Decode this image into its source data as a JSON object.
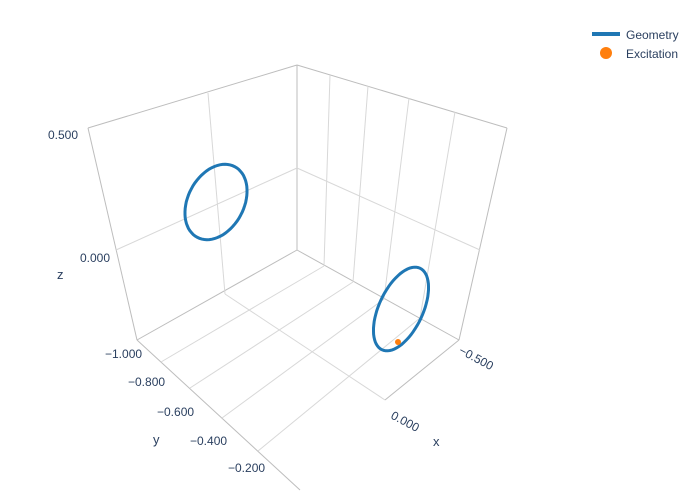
{
  "chart_data": {
    "type": "scatter3d",
    "title": "",
    "axes": {
      "x": {
        "label": "x",
        "ticks": [
          "−0.500",
          "0.000"
        ]
      },
      "y": {
        "label": "y",
        "ticks": [
          "−1.000",
          "−0.800",
          "−0.600",
          "−0.400",
          "−0.200"
        ]
      },
      "z": {
        "label": "z",
        "ticks": [
          "0.500",
          "0.000"
        ]
      }
    },
    "legend": {
      "placement": "top-right",
      "entries": [
        {
          "name": "Geometry",
          "symbol": "line",
          "color": "#1f77b4"
        },
        {
          "name": "Excitation",
          "symbol": "marker",
          "color": "#ff7f0e"
        }
      ]
    },
    "series": [
      {
        "name": "Geometry",
        "mode": "lines",
        "color": "#1f77b4",
        "description": "two circular loops"
      },
      {
        "name": "Excitation",
        "mode": "markers",
        "color": "#ff7f0e"
      }
    ],
    "grid": true
  }
}
